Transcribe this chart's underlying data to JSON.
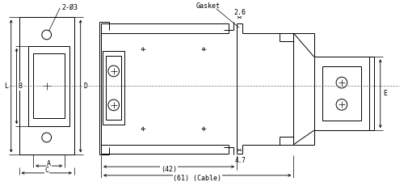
{
  "bg_color": "#ffffff",
  "line_color": "#000000",
  "fig_width": 5.06,
  "fig_height": 2.25,
  "dpi": 100,
  "annotations": {
    "hole_label": "2-Ø3",
    "gasket": "Gasket",
    "dim_26": "2.6",
    "dim_47": "4.7",
    "dim_42": "(42)",
    "dim_61": "(61) (Cable)",
    "label_L": "L",
    "label_B": "B",
    "label_D": "D",
    "label_A": "A",
    "label_C": "C",
    "label_E": "E"
  },
  "lw_main": 0.7,
  "lw_thin": 0.5,
  "lw_dim": 0.6,
  "fontsize": 6.0
}
